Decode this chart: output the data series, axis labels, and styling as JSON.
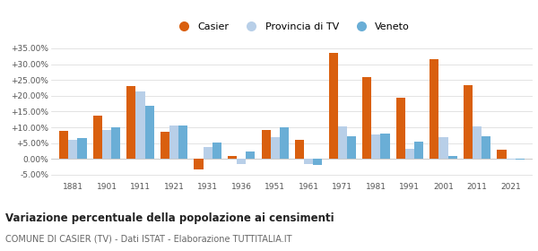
{
  "years": [
    1881,
    1901,
    1911,
    1921,
    1931,
    1936,
    1951,
    1961,
    1971,
    1981,
    1991,
    2001,
    2011,
    2021
  ],
  "casier": [
    8.8,
    13.6,
    23.0,
    8.5,
    -3.3,
    1.0,
    9.3,
    6.1,
    33.5,
    26.0,
    19.5,
    31.5,
    23.3,
    3.0
  ],
  "provincia": [
    6.1,
    9.3,
    21.5,
    10.5,
    3.8,
    -1.5,
    7.0,
    -1.5,
    10.3,
    7.8,
    3.2,
    6.8,
    10.2,
    -0.2
  ],
  "veneto": [
    6.7,
    10.0,
    16.8,
    10.5,
    5.2,
    2.3,
    10.0,
    -2.0,
    7.2,
    8.0,
    5.5,
    1.0,
    7.3,
    -0.1
  ],
  "color_casier": "#d95f0e",
  "color_provincia": "#b8cfe8",
  "color_veneto": "#6aaed6",
  "ylim": [
    -6.5,
    38
  ],
  "yticks": [
    -5,
    0,
    5,
    10,
    15,
    20,
    25,
    30,
    35
  ],
  "ytick_labels": [
    "-5.00%",
    "0.00%",
    "+5.00%",
    "+10.00%",
    "+15.00%",
    "+20.00%",
    "+25.00%",
    "+30.00%",
    "+35.00%"
  ],
  "title": "Variazione percentuale della popolazione ai censimenti",
  "subtitle": "COMUNE DI CASIER (TV) - Dati ISTAT - Elaborazione TUTTITALIA.IT",
  "legend_labels": [
    "Casier",
    "Provincia di TV",
    "Veneto"
  ],
  "bar_width": 0.27
}
